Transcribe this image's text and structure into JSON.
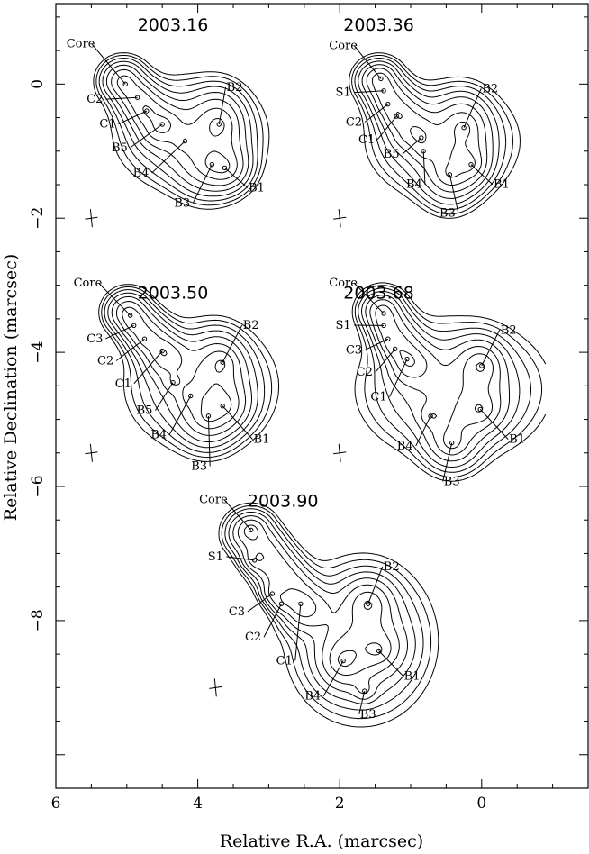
{
  "chart_data": {
    "type": "contour",
    "xlabel": "Relative R.A. (marcsec)",
    "ylabel": "Relative Declination (marcsec)",
    "xlim": [
      6,
      -1.5
    ],
    "ylim": [
      -10.5,
      1.2
    ],
    "x_ticks": [
      6,
      4,
      2,
      0
    ],
    "x_tick_labels": [
      "6",
      "4",
      "2",
      "0"
    ],
    "y_ticks": [
      0,
      -2,
      -4,
      -6,
      -8
    ],
    "y_tick_labels": [
      "0",
      "−2",
      "−4",
      "−6",
      "−8"
    ],
    "contour_levels": 9,
    "panels": [
      {
        "epoch": "2003.16",
        "title_pos": [
          4.35,
          0.8
        ],
        "beam": [
          5.5,
          -2.0
        ],
        "components": [
          {
            "name": "Core",
            "x": 5.02,
            "y": 0.0,
            "lx": 5.65,
            "ly": 0.55
          },
          {
            "name": "C2",
            "x": 4.85,
            "y": -0.2,
            "lx": 5.45,
            "ly": -0.28
          },
          {
            "name": "C1",
            "x": 4.72,
            "y": -0.4,
            "lx": 5.27,
            "ly": -0.65
          },
          {
            "name": "B5",
            "x": 4.5,
            "y": -0.6,
            "lx": 5.1,
            "ly": -1.0
          },
          {
            "name": "B4",
            "x": 4.18,
            "y": -0.85,
            "lx": 4.8,
            "ly": -1.38
          },
          {
            "name": "B3",
            "x": 3.8,
            "y": -1.2,
            "lx": 4.22,
            "ly": -1.83
          },
          {
            "name": "B2",
            "x": 3.7,
            "y": -0.6,
            "lx": 3.48,
            "ly": -0.1
          },
          {
            "name": "B1",
            "x": 3.62,
            "y": -1.25,
            "lx": 3.17,
            "ly": -1.6
          }
        ],
        "blobs": [
          {
            "name": "jet",
            "x1": 5.05,
            "y1": 0.05,
            "x2": 4.55,
            "y2": -0.6,
            "w": 0.2,
            "f": 1.0
          },
          {
            "name": "cloud",
            "x": 4.1,
            "y": -0.75,
            "sx": 0.55,
            "sy": 0.45,
            "f": 0.85
          },
          {
            "name": "B2",
            "x": 3.7,
            "y": -0.55,
            "sx": 0.22,
            "sy": 0.3,
            "f": 0.75
          },
          {
            "name": "B3",
            "x": 3.85,
            "y": -1.2,
            "sx": 0.28,
            "sy": 0.32,
            "f": 0.7
          },
          {
            "name": "B1",
            "x": 3.55,
            "y": -1.25,
            "sx": 0.2,
            "sy": 0.22,
            "f": 0.6
          }
        ]
      },
      {
        "epoch": "2003.36",
        "title_pos": [
          1.45,
          0.8
        ],
        "beam": [
          2.0,
          -2.0
        ],
        "components": [
          {
            "name": "Core",
            "x": 1.42,
            "y": 0.08,
            "lx": 1.95,
            "ly": 0.52
          },
          {
            "name": "S1",
            "x": 1.38,
            "y": -0.1,
            "lx": 1.95,
            "ly": -0.18
          },
          {
            "name": "C2",
            "x": 1.32,
            "y": -0.3,
            "lx": 1.8,
            "ly": -0.62
          },
          {
            "name": "C1",
            "x": 1.2,
            "y": -0.48,
            "lx": 1.62,
            "ly": -0.88
          },
          {
            "name": "B5",
            "x": 0.85,
            "y": -0.8,
            "lx": 1.27,
            "ly": -1.1
          },
          {
            "name": "B4",
            "x": 0.82,
            "y": -1.0,
            "lx": 0.95,
            "ly": -1.55
          },
          {
            "name": "B3",
            "x": 0.45,
            "y": -1.35,
            "lx": 0.48,
            "ly": -1.98
          },
          {
            "name": "B2",
            "x": 0.25,
            "y": -0.65,
            "lx": -0.12,
            "ly": -0.12
          },
          {
            "name": "B1",
            "x": 0.15,
            "y": -1.2,
            "lx": -0.28,
            "ly": -1.55
          }
        ],
        "blobs": [
          {
            "name": "jet",
            "x1": 1.45,
            "y1": 0.05,
            "x2": 1.0,
            "y2": -0.65,
            "w": 0.2,
            "f": 1.0
          },
          {
            "name": "cloud",
            "x": 0.55,
            "y": -0.85,
            "sx": 0.55,
            "sy": 0.45,
            "f": 0.85
          },
          {
            "name": "B2",
            "x": 0.25,
            "y": -0.62,
            "sx": 0.22,
            "sy": 0.3,
            "f": 0.75
          },
          {
            "name": "B3",
            "x": 0.45,
            "y": -1.35,
            "sx": 0.25,
            "sy": 0.32,
            "f": 0.7
          },
          {
            "name": "B1",
            "x": 0.18,
            "y": -1.2,
            "sx": 0.2,
            "sy": 0.22,
            "f": 0.6
          }
        ]
      },
      {
        "epoch": "2003.50",
        "title_pos": [
          4.35,
          -3.2
        ],
        "beam": [
          5.5,
          -5.5
        ],
        "components": [
          {
            "name": "Core",
            "x": 4.95,
            "y": -3.45,
            "lx": 5.55,
            "ly": -3.02
          },
          {
            "name": "C3",
            "x": 4.9,
            "y": -3.6,
            "lx": 5.45,
            "ly": -3.85
          },
          {
            "name": "C2",
            "x": 4.75,
            "y": -3.8,
            "lx": 5.3,
            "ly": -4.18
          },
          {
            "name": "C1",
            "x": 4.5,
            "y": -3.98,
            "lx": 5.05,
            "ly": -4.52
          },
          {
            "name": "B5",
            "x": 4.35,
            "y": -4.45,
            "lx": 4.75,
            "ly": -4.92
          },
          {
            "name": "B4",
            "x": 4.1,
            "y": -4.65,
            "lx": 4.55,
            "ly": -5.28
          },
          {
            "name": "B3",
            "x": 3.85,
            "y": -4.95,
            "lx": 3.98,
            "ly": -5.75
          },
          {
            "name": "B2",
            "x": 3.65,
            "y": -4.15,
            "lx": 3.25,
            "ly": -3.65
          },
          {
            "name": "B1",
            "x": 3.65,
            "y": -4.8,
            "lx": 3.1,
            "ly": -5.35
          }
        ],
        "blobs": [
          {
            "name": "jet",
            "x1": 4.98,
            "y1": -3.4,
            "x2": 4.45,
            "y2": -4.05,
            "w": 0.2,
            "f": 1.0
          },
          {
            "name": "cloud",
            "x": 3.95,
            "y": -4.5,
            "sx": 0.55,
            "sy": 0.5,
            "f": 0.85
          },
          {
            "name": "B2",
            "x": 3.7,
            "y": -4.2,
            "sx": 0.22,
            "sy": 0.3,
            "f": 0.75
          },
          {
            "name": "B3",
            "x": 3.85,
            "y": -4.95,
            "sx": 0.25,
            "sy": 0.3,
            "f": 0.7
          },
          {
            "name": "B1",
            "x": 3.6,
            "y": -4.8,
            "sx": 0.22,
            "sy": 0.22,
            "f": 0.6
          }
        ]
      },
      {
        "epoch": "2003.68",
        "title_pos": [
          1.45,
          -3.2
        ],
        "beam": [
          2.0,
          -5.5
        ],
        "components": [
          {
            "name": "Core",
            "x": 1.38,
            "y": -3.42,
            "lx": 1.95,
            "ly": -3.02
          },
          {
            "name": "S1",
            "x": 1.38,
            "y": -3.6,
            "lx": 1.95,
            "ly": -3.65
          },
          {
            "name": "C3",
            "x": 1.32,
            "y": -3.8,
            "lx": 1.8,
            "ly": -4.02
          },
          {
            "name": "C2",
            "x": 1.22,
            "y": -3.95,
            "lx": 1.65,
            "ly": -4.35
          },
          {
            "name": "C1",
            "x": 1.05,
            "y": -4.1,
            "lx": 1.45,
            "ly": -4.72
          },
          {
            "name": "B4",
            "x": 0.72,
            "y": -4.95,
            "lx": 1.08,
            "ly": -5.45
          },
          {
            "name": "B3",
            "x": 0.42,
            "y": -5.35,
            "lx": 0.42,
            "ly": -5.98
          },
          {
            "name": "B2",
            "x": 0.0,
            "y": -4.2,
            "lx": -0.38,
            "ly": -3.72
          },
          {
            "name": "B1",
            "x": 0.02,
            "y": -4.85,
            "lx": -0.5,
            "ly": -5.35
          }
        ],
        "blobs": [
          {
            "name": "jet",
            "x1": 1.4,
            "y1": -3.38,
            "x2": 1.0,
            "y2": -4.15,
            "w": 0.2,
            "f": 1.0
          },
          {
            "name": "cloud",
            "x": 0.4,
            "y": -4.55,
            "sx": 0.7,
            "sy": 0.55,
            "f": 0.85
          },
          {
            "name": "B2",
            "x": 0.02,
            "y": -4.2,
            "sx": 0.2,
            "sy": 0.25,
            "f": 0.75
          },
          {
            "name": "B3",
            "x": 0.42,
            "y": -5.3,
            "sx": 0.25,
            "sy": 0.3,
            "f": 0.7
          },
          {
            "name": "B1",
            "x": 0.02,
            "y": -4.85,
            "sx": 0.22,
            "sy": 0.22,
            "f": 0.6
          }
        ]
      },
      {
        "epoch": "2003.90",
        "title_pos": [
          2.8,
          -6.3
        ],
        "beam": [
          3.75,
          -9.0
        ],
        "components": [
          {
            "name": "Core",
            "x": 3.25,
            "y": -6.65,
            "lx": 3.78,
            "ly": -6.25
          },
          {
            "name": "S1",
            "x": 3.2,
            "y": -7.1,
            "lx": 3.75,
            "ly": -7.1
          },
          {
            "name": "C3",
            "x": 2.95,
            "y": -7.6,
            "lx": 3.45,
            "ly": -7.92
          },
          {
            "name": "C2",
            "x": 2.82,
            "y": -7.75,
            "lx": 3.22,
            "ly": -8.3
          },
          {
            "name": "C1",
            "x": 2.55,
            "y": -7.75,
            "lx": 2.78,
            "ly": -8.65
          },
          {
            "name": "B4",
            "x": 1.95,
            "y": -8.6,
            "lx": 2.38,
            "ly": -9.18
          },
          {
            "name": "B3",
            "x": 1.65,
            "y": -9.05,
            "lx": 1.6,
            "ly": -9.45
          },
          {
            "name": "B2",
            "x": 1.6,
            "y": -7.75,
            "lx": 1.27,
            "ly": -7.25
          },
          {
            "name": "B1",
            "x": 1.45,
            "y": -8.45,
            "lx": 0.98,
            "ly": -8.88
          }
        ],
        "blobs": [
          {
            "name": "jet",
            "x1": 3.25,
            "y1": -6.7,
            "x2": 2.5,
            "y2": -7.8,
            "w": 0.22,
            "f": 1.0
          },
          {
            "name": "cloud",
            "x": 1.7,
            "y": -8.3,
            "sx": 0.55,
            "sy": 0.65,
            "f": 0.85
          },
          {
            "name": "B2",
            "x": 1.6,
            "y": -7.75,
            "sx": 0.22,
            "sy": 0.25,
            "f": 0.75
          },
          {
            "name": "B4",
            "x": 1.95,
            "y": -8.6,
            "sx": 0.22,
            "sy": 0.25,
            "f": 0.7
          },
          {
            "name": "B1",
            "x": 1.5,
            "y": -8.4,
            "sx": 0.25,
            "sy": 0.22,
            "f": 0.6
          }
        ]
      }
    ]
  }
}
